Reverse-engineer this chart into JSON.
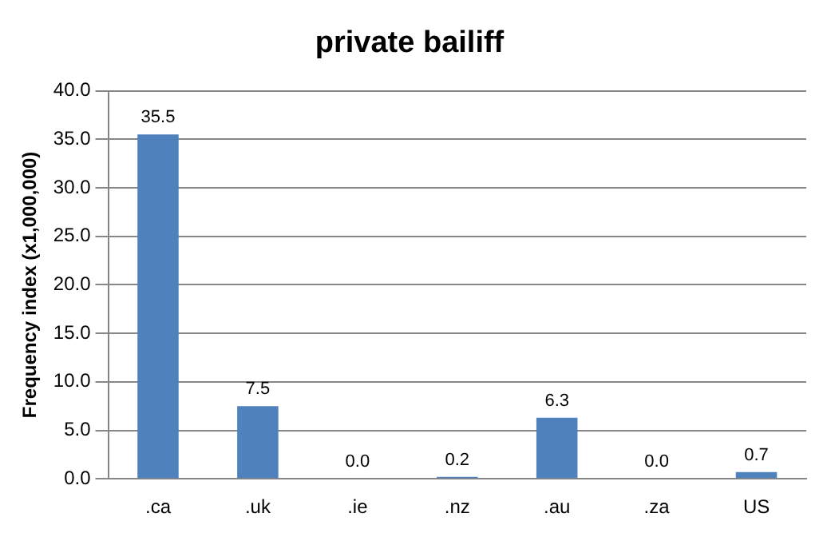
{
  "chart_data": {
    "type": "bar",
    "title": "private bailiff",
    "ylabel": "Frequency index (x1,000,000)",
    "categories": [
      ".ca",
      ".uk",
      ".ie",
      ".nz",
      ".au",
      ".za",
      "US"
    ],
    "values": [
      35.5,
      7.5,
      0.0,
      0.2,
      6.3,
      0.0,
      0.7
    ],
    "value_labels": [
      "35.5",
      "7.5",
      "0.0",
      "0.2",
      "6.3",
      "0.0",
      "0.7"
    ],
    "color": "#4f81bd",
    "ylim": [
      0,
      40
    ],
    "yticks": [
      {
        "value": 0,
        "label": "0.0"
      },
      {
        "value": 5,
        "label": "5.0"
      },
      {
        "value": 10,
        "label": "10.0"
      },
      {
        "value": 15,
        "label": "15.0"
      },
      {
        "value": 20,
        "label": "20.0"
      },
      {
        "value": 25,
        "label": "25.0"
      },
      {
        "value": 30,
        "label": "30.0"
      },
      {
        "value": 35,
        "label": "35.0"
      },
      {
        "value": 40,
        "label": "40.0"
      }
    ],
    "grid": "y",
    "legend": false
  }
}
